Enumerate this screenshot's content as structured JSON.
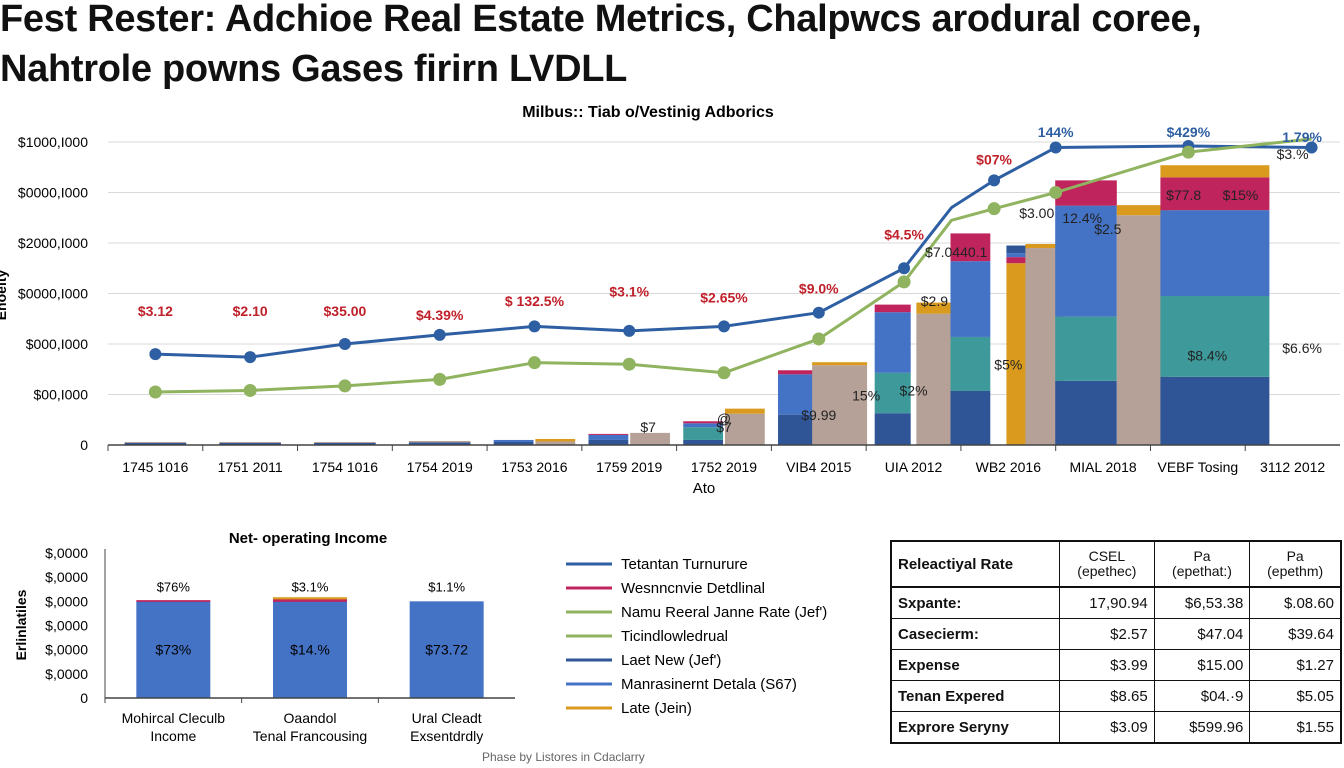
{
  "title_lines": [
    "Fest Rester: Adchioe Real Estate Metrics, Chalpwcs arodural coree,",
    "Nahtrole powns  Gases firirn LVDLL"
  ],
  "footer": "Phase by Listores in Cdaclarry",
  "colors": {
    "navy": "#2f5597",
    "blue": "#4472c4",
    "teal": "#3e9a9a",
    "magenta": "#c0245c",
    "orange": "#d99a1e",
    "taupe": "#b5a198",
    "green": "#8fb35e",
    "line_blue": "#2e5fa3",
    "label_red": "#c0202a"
  },
  "chart_data": [
    {
      "type": "bar",
      "title": "Milbus:: Tiab o/Vestinig Adborics",
      "xlabel": "Ato",
      "ylabel": "Enoeity",
      "yticks": [
        "$1000,I000",
        "$0000,I000",
        "$2000,I000",
        "$0000,I000",
        "$000,I000",
        "$00,I000",
        "0"
      ],
      "ylim": [
        0,
        6
      ],
      "categories": [
        "1745  1016",
        "1751  2011",
        "1754  1016",
        "1754  2019",
        "1753  2016",
        "1759  2019",
        "1752  2019",
        "VIB4  2015",
        "UIA  2012",
        "WB2  2016",
        "MIAL  2018",
        "VEBF Tosing",
        "3112  2012"
      ],
      "stacks": [
        {
          "x": 1,
          "w": 0.65,
          "segments": [
            {
              "c": "navy",
              "v": 0.04
            },
            {
              "c": "taupe",
              "v": 0.02
            }
          ]
        },
        {
          "x": 2,
          "w": 0.65,
          "segments": [
            {
              "c": "navy",
              "v": 0.04
            },
            {
              "c": "taupe",
              "v": 0.02
            }
          ]
        },
        {
          "x": 3,
          "w": 0.65,
          "segments": [
            {
              "c": "navy",
              "v": 0.04
            },
            {
              "c": "taupe",
              "v": 0.02
            }
          ]
        },
        {
          "x": 4,
          "w": 0.65,
          "segments": [
            {
              "c": "navy",
              "v": 0.05
            },
            {
              "c": "taupe",
              "v": 0.03
            }
          ]
        },
        {
          "x": 4.78,
          "w": 0.42,
          "segments": [
            {
              "c": "navy",
              "v": 0.06
            },
            {
              "c": "blue",
              "v": 0.04
            }
          ]
        },
        {
          "x": 5.22,
          "w": 0.42,
          "segments": [
            {
              "c": "taupe",
              "v": 0.07
            },
            {
              "c": "orange",
              "v": 0.05
            }
          ]
        },
        {
          "x": 5.78,
          "w": 0.42,
          "segments": [
            {
              "c": "navy",
              "v": 0.1
            },
            {
              "c": "blue",
              "v": 0.1
            },
            {
              "c": "magenta",
              "v": 0.02
            }
          ]
        },
        {
          "x": 6.22,
          "w": 0.42,
          "segments": [
            {
              "c": "taupe",
              "v": 0.24
            }
          ]
        },
        {
          "x": 6.78,
          "w": 0.42,
          "segments": [
            {
              "c": "navy",
              "v": 0.1
            },
            {
              "c": "teal",
              "v": 0.25
            },
            {
              "c": "blue",
              "v": 0.08
            },
            {
              "c": "magenta",
              "v": 0.04
            }
          ]
        },
        {
          "x": 7.22,
          "w": 0.42,
          "segments": [
            {
              "c": "taupe",
              "v": 0.62
            },
            {
              "c": "orange",
              "v": 0.1
            }
          ]
        },
        {
          "x": 7.78,
          "w": 0.42,
          "segments": [
            {
              "c": "navy",
              "v": 0.6
            },
            {
              "c": "blue",
              "v": 0.8
            },
            {
              "c": "magenta",
              "v": 0.08
            }
          ]
        },
        {
          "x": 8.22,
          "w": 0.58,
          "segments": [
            {
              "c": "taupe",
              "v": 1.58
            },
            {
              "c": "orange",
              "v": 0.06
            }
          ]
        },
        {
          "x": 8.78,
          "w": 0.38,
          "segments": [
            {
              "c": "navy",
              "v": 0.63
            },
            {
              "c": "teal",
              "v": 0.8
            },
            {
              "c": "blue",
              "v": 1.2
            },
            {
              "c": "magenta",
              "v": 0.15
            }
          ]
        },
        {
          "x": 9.22,
          "w": 0.38,
          "segments": [
            {
              "c": "taupe",
              "v": 2.6
            },
            {
              "c": "orange",
              "v": 0.22
            }
          ]
        },
        {
          "x": 9.6,
          "w": 0.42,
          "segments": [
            {
              "c": "navy",
              "v": 1.07
            },
            {
              "c": "teal",
              "v": 1.07
            },
            {
              "c": "blue",
              "v": 1.5
            },
            {
              "c": "magenta",
              "v": 0.55
            }
          ]
        },
        {
          "x": 10.1,
          "w": 0.24,
          "segments": [
            {
              "c": "orange",
              "v": 3.6
            },
            {
              "c": "magenta",
              "v": 0.12
            },
            {
              "c": "blue",
              "v": 0.08
            },
            {
              "c": "navy",
              "v": 0.15
            }
          ]
        },
        {
          "x": 10.38,
          "w": 0.4,
          "segments": [
            {
              "c": "taupe",
              "v": 3.9
            },
            {
              "c": "orange",
              "v": 0.08
            }
          ]
        },
        {
          "x": 10.82,
          "w": 0.65,
          "segments": [
            {
              "c": "navy",
              "v": 1.27
            },
            {
              "c": "teal",
              "v": 1.27
            },
            {
              "c": "blue",
              "v": 2.2
            },
            {
              "c": "magenta",
              "v": 0.5
            }
          ]
        },
        {
          "x": 11.42,
          "w": 0.55,
          "segments": [
            {
              "c": "taupe",
              "v": 4.55
            },
            {
              "c": "orange",
              "v": 0.2
            }
          ]
        },
        {
          "x": 12.18,
          "w": 1.15,
          "segments": [
            {
              "c": "navy",
              "v": 1.35
            },
            {
              "c": "teal",
              "v": 1.6
            },
            {
              "c": "blue",
              "v": 1.7
            },
            {
              "c": "magenta",
              "v": 0.65
            },
            {
              "c": "orange",
              "v": 0.24
            }
          ]
        }
      ],
      "series": [
        {
          "color": "line_blue",
          "x": [
            1,
            2,
            3,
            4,
            5,
            6,
            7,
            8,
            8.9,
            9.4,
            9.85,
            10.5,
            11.9,
            13.2
          ],
          "y": [
            1.8,
            1.74,
            2.0,
            2.18,
            2.35,
            2.26,
            2.35,
            2.62,
            3.5,
            4.7,
            5.24,
            5.89,
            5.92,
            5.89
          ],
          "marked": [
            true,
            true,
            true,
            true,
            true,
            true,
            true,
            true,
            true,
            false,
            true,
            true,
            true,
            true
          ]
        },
        {
          "color": "green",
          "x": [
            1,
            2,
            3,
            4,
            5,
            6,
            7,
            8,
            8.9,
            9.4,
            9.85,
            10.5,
            11.9,
            13.2
          ],
          "y": [
            1.05,
            1.08,
            1.17,
            1.3,
            1.63,
            1.6,
            1.43,
            2.1,
            3.23,
            4.45,
            4.68,
            5.0,
            5.8,
            6.06
          ],
          "marked": [
            true,
            true,
            true,
            true,
            true,
            true,
            true,
            true,
            true,
            false,
            true,
            true,
            true,
            false
          ]
        }
      ],
      "labels": [
        {
          "x": 1,
          "y": 2.55,
          "t": "$3.12",
          "c": "label_red"
        },
        {
          "x": 2,
          "y": 2.55,
          "t": "$2.10",
          "c": "label_red"
        },
        {
          "x": 3,
          "y": 2.55,
          "t": "$35.00",
          "c": "label_red"
        },
        {
          "x": 4,
          "y": 2.48,
          "t": "$4.39%",
          "c": "label_red"
        },
        {
          "x": 5,
          "y": 2.75,
          "t": "$ 132.5%",
          "c": "label_red"
        },
        {
          "x": 6,
          "y": 2.94,
          "t": "$3.1%",
          "c": "label_red"
        },
        {
          "x": 7,
          "y": 2.82,
          "t": "$2.65%",
          "c": "label_red"
        },
        {
          "x": 8,
          "y": 3.0,
          "t": "$9.0%",
          "c": "label_red"
        },
        {
          "x": 8.9,
          "y": 4.07,
          "t": "$4.5%",
          "c": "label_red"
        },
        {
          "x": 9.85,
          "y": 5.55,
          "t": "$07%",
          "c": "label_red"
        },
        {
          "x": 10.5,
          "y": 6.1,
          "t": "144%",
          "c": "line_blue"
        },
        {
          "x": 11.9,
          "y": 6.1,
          "t": "$429%",
          "c": "line_blue"
        },
        {
          "x": 13.1,
          "y": 6.0,
          "t": "1.79%",
          "c": "line_blue"
        },
        {
          "x": 13.0,
          "y": 5.66,
          "t": "$3.%",
          "c": "dark"
        },
        {
          "x": 9.22,
          "y": 2.75,
          "t": "$2.9",
          "c": "dark"
        },
        {
          "x": 9.45,
          "y": 3.72,
          "t": "$7.0440.1",
          "c": "dark"
        },
        {
          "x": 10.3,
          "y": 4.5,
          "t": "$3.00",
          "c": "dark"
        },
        {
          "x": 10.78,
          "y": 4.4,
          "t": "12.4%",
          "c": "dark"
        },
        {
          "x": 11.05,
          "y": 4.18,
          "t": "$2.5",
          "c": "dark"
        },
        {
          "x": 11.85,
          "y": 4.85,
          "t": "$77.8",
          "c": "dark"
        },
        {
          "x": 12.45,
          "y": 4.85,
          "t": "$15%",
          "c": "dark"
        },
        {
          "x": 9.0,
          "y": 0.98,
          "t": "$2%",
          "c": "dark"
        },
        {
          "x": 8.5,
          "y": 0.88,
          "t": "15%",
          "c": "dark"
        },
        {
          "x": 8.0,
          "y": 0.5,
          "t": "$9.99",
          "c": "dark"
        },
        {
          "x": 10.0,
          "y": 1.5,
          "t": "$5%",
          "c": "dark"
        },
        {
          "x": 12.1,
          "y": 1.67,
          "t": "$8.4%",
          "c": "dark"
        },
        {
          "x": 13.1,
          "y": 1.82,
          "t": "$6.6%",
          "c": "dark"
        },
        {
          "x": 6.2,
          "y": 0.26,
          "t": "$7",
          "c": "dark"
        },
        {
          "x": 7.0,
          "y": 0.26,
          "t": "$7",
          "c": "dark"
        },
        {
          "x": 7.0,
          "y": 0.43,
          "t": "@",
          "c": "dark"
        }
      ]
    },
    {
      "type": "bar",
      "title": "Net- operating Income",
      "ylabel": "Erlinlatiles",
      "yticks": [
        "$,0000",
        "$,0000",
        "$,0000",
        "$,0000",
        "$,0000",
        "$,0000",
        "0"
      ],
      "ylim": [
        0,
        6
      ],
      "categories": [
        [
          "Mohircal Cleculb",
          "Income"
        ],
        [
          "Oaandol",
          "Tenal Francousing"
        ],
        [
          "Ural Cleadt",
          "Exsentdrdly"
        ]
      ],
      "values": [
        4.0,
        4.0,
        4.0
      ],
      "tops": [
        [
          {
            "c": "magenta",
            "v": 0.05
          }
        ],
        [
          {
            "c": "magenta",
            "v": 0.1
          },
          {
            "c": "orange",
            "v": 0.07
          }
        ],
        []
      ],
      "top_labels": [
        "$76%",
        "$3.1%",
        "$1.1%"
      ],
      "inner_labels": [
        "$73%",
        "$14.%",
        "$73.72"
      ]
    }
  ],
  "legend": [
    {
      "color": "line_blue",
      "label": "Tetantan Turnurure"
    },
    {
      "color": "magenta",
      "label": "Wesnncnvie Detdlinal"
    },
    {
      "color": "green",
      "label": "Namu Reeral Janne Rate (Jef')"
    },
    {
      "color": "green",
      "label": "Ticindlowledrual"
    },
    {
      "color": "navy",
      "label": "Laet New (Jef')"
    },
    {
      "color": "blue",
      "label": "Manrasinernt Detala (S67)"
    },
    {
      "color": "orange",
      "label": "Late (Jein)"
    }
  ],
  "table": {
    "header": [
      "Releactiyal Rate",
      [
        "CSEL",
        "(epethec)"
      ],
      [
        "Pa",
        "(epethat:)"
      ],
      [
        "Pa",
        "(epethm)"
      ]
    ],
    "rows": [
      [
        "Sxpante:",
        "17,90.94",
        "$6,53.38",
        "$.08.60"
      ],
      [
        "Casecierm:",
        "$2.57",
        "$47.04",
        "$39.64"
      ],
      [
        "Expense",
        "$3.99",
        "$15.00",
        "$1.27"
      ],
      [
        "Tenan Expered",
        "$8.65",
        "$04.·9",
        "$5.05"
      ],
      [
        "Exprore Seryny",
        "$3.09",
        "$599.96",
        "$1.55"
      ]
    ]
  }
}
